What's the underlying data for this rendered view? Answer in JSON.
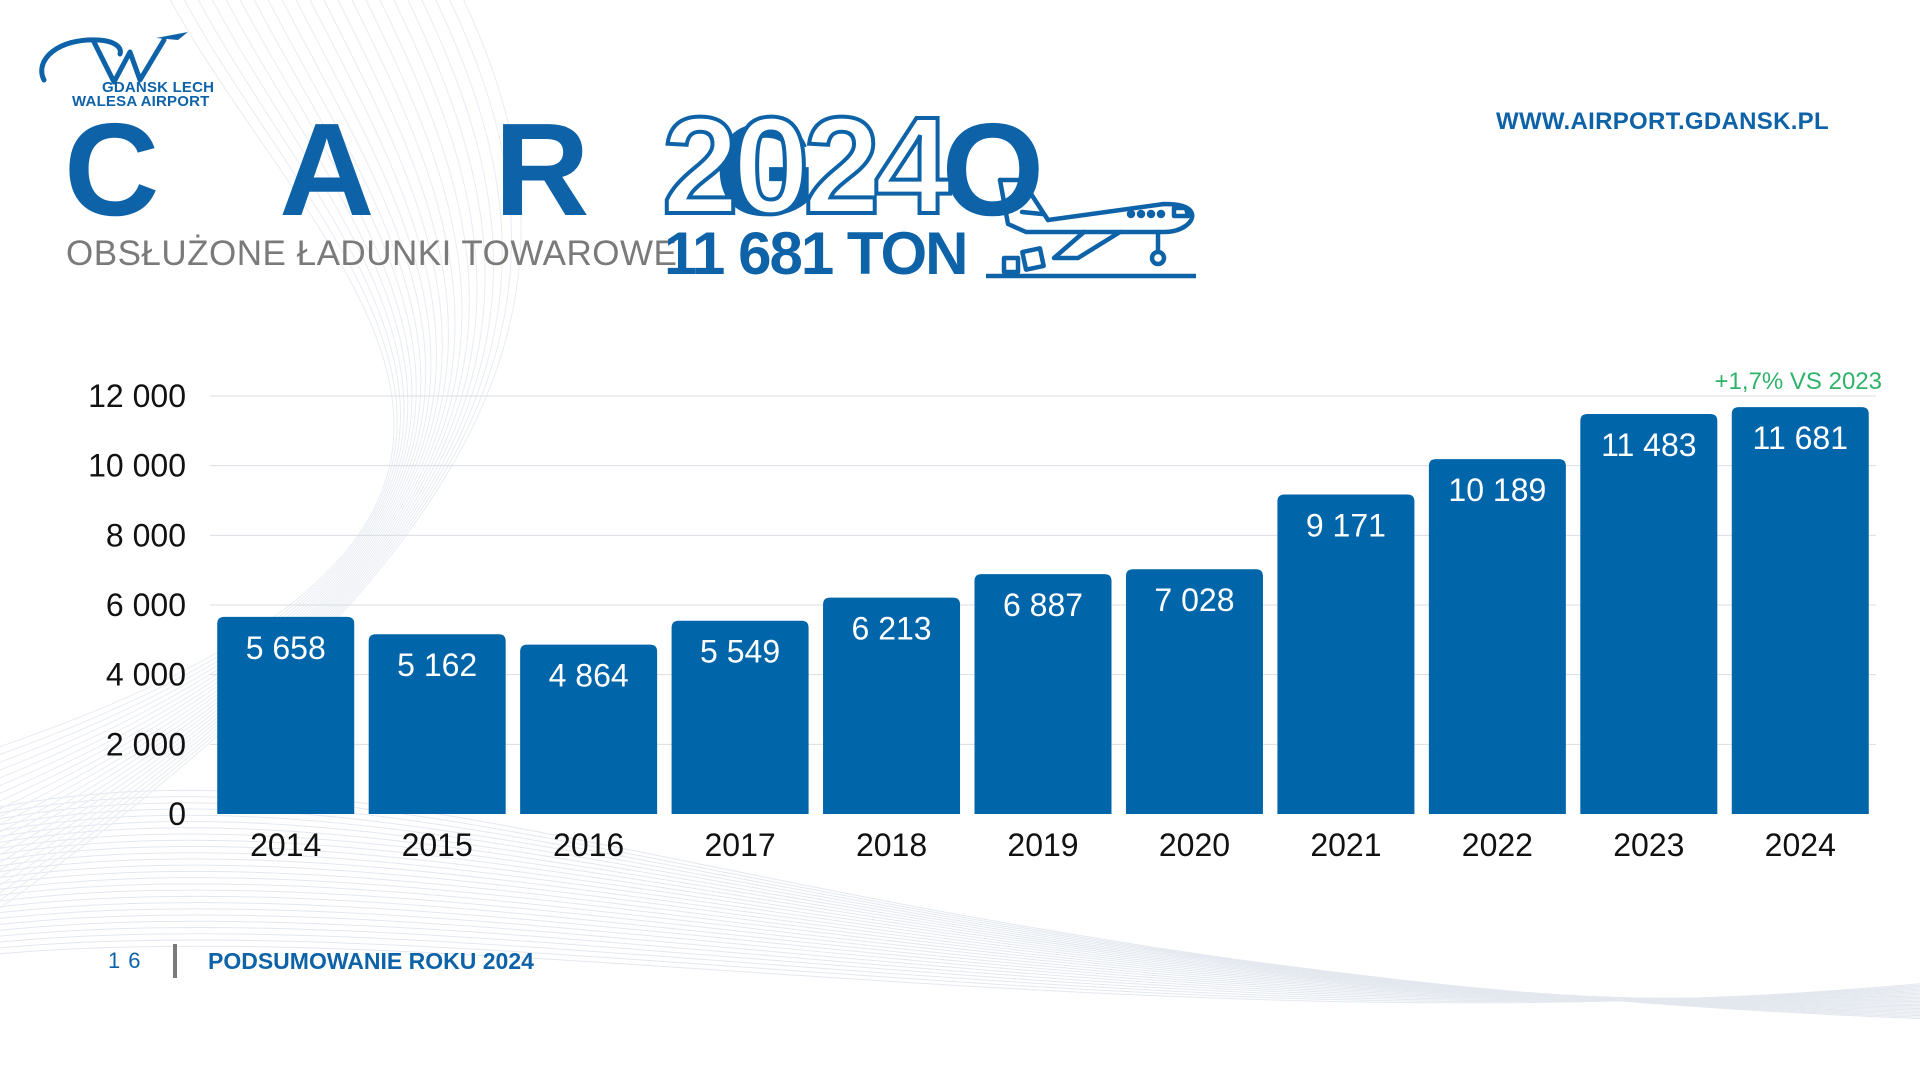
{
  "header": {
    "logo_line1": "GDANSK LECH",
    "logo_line2": "WALESA AIRPORT",
    "title": "C A R G O",
    "year": "2024",
    "subtitle": "OBSŁUŻONE ŁADUNKI TOWAROWE",
    "total": "11 681 TON",
    "website": "WWW.AIRPORT.GDANSK.PL",
    "icons": [
      "airport-logo-icon",
      "cargo-plane-icon"
    ]
  },
  "colors": {
    "primary": "#0e63a8",
    "bar": "#0065a9",
    "accent_green": "#2fb36a",
    "muted": "#7a7a7a",
    "grid": "#d9dde3"
  },
  "chart_data": {
    "type": "bar",
    "title": "",
    "xlabel": "",
    "ylabel": "",
    "categories": [
      "2014",
      "2015",
      "2016",
      "2017",
      "2018",
      "2019",
      "2020",
      "2021",
      "2022",
      "2023",
      "2024"
    ],
    "values": [
      5658,
      5162,
      4864,
      5549,
      6213,
      6887,
      7028,
      9171,
      10189,
      11483,
      11681
    ],
    "value_labels": [
      "5 658",
      "5 162",
      "4 864",
      "5 549",
      "6 213",
      "6 887",
      "7 028",
      "9 171",
      "10 189",
      "11 483",
      "11 681"
    ],
    "ylim": [
      0,
      12000
    ],
    "yticks": [
      0,
      2000,
      4000,
      6000,
      8000,
      10000,
      12000
    ],
    "ytick_labels": [
      "0",
      "2 000",
      "4 000",
      "6 000",
      "8 000",
      "10 000",
      "12 000"
    ],
    "grid": true,
    "annotation": "+1,7% VS 2023"
  },
  "footer": {
    "page_number": "16",
    "label": "PODSUMOWANIE ROKU 2024"
  }
}
